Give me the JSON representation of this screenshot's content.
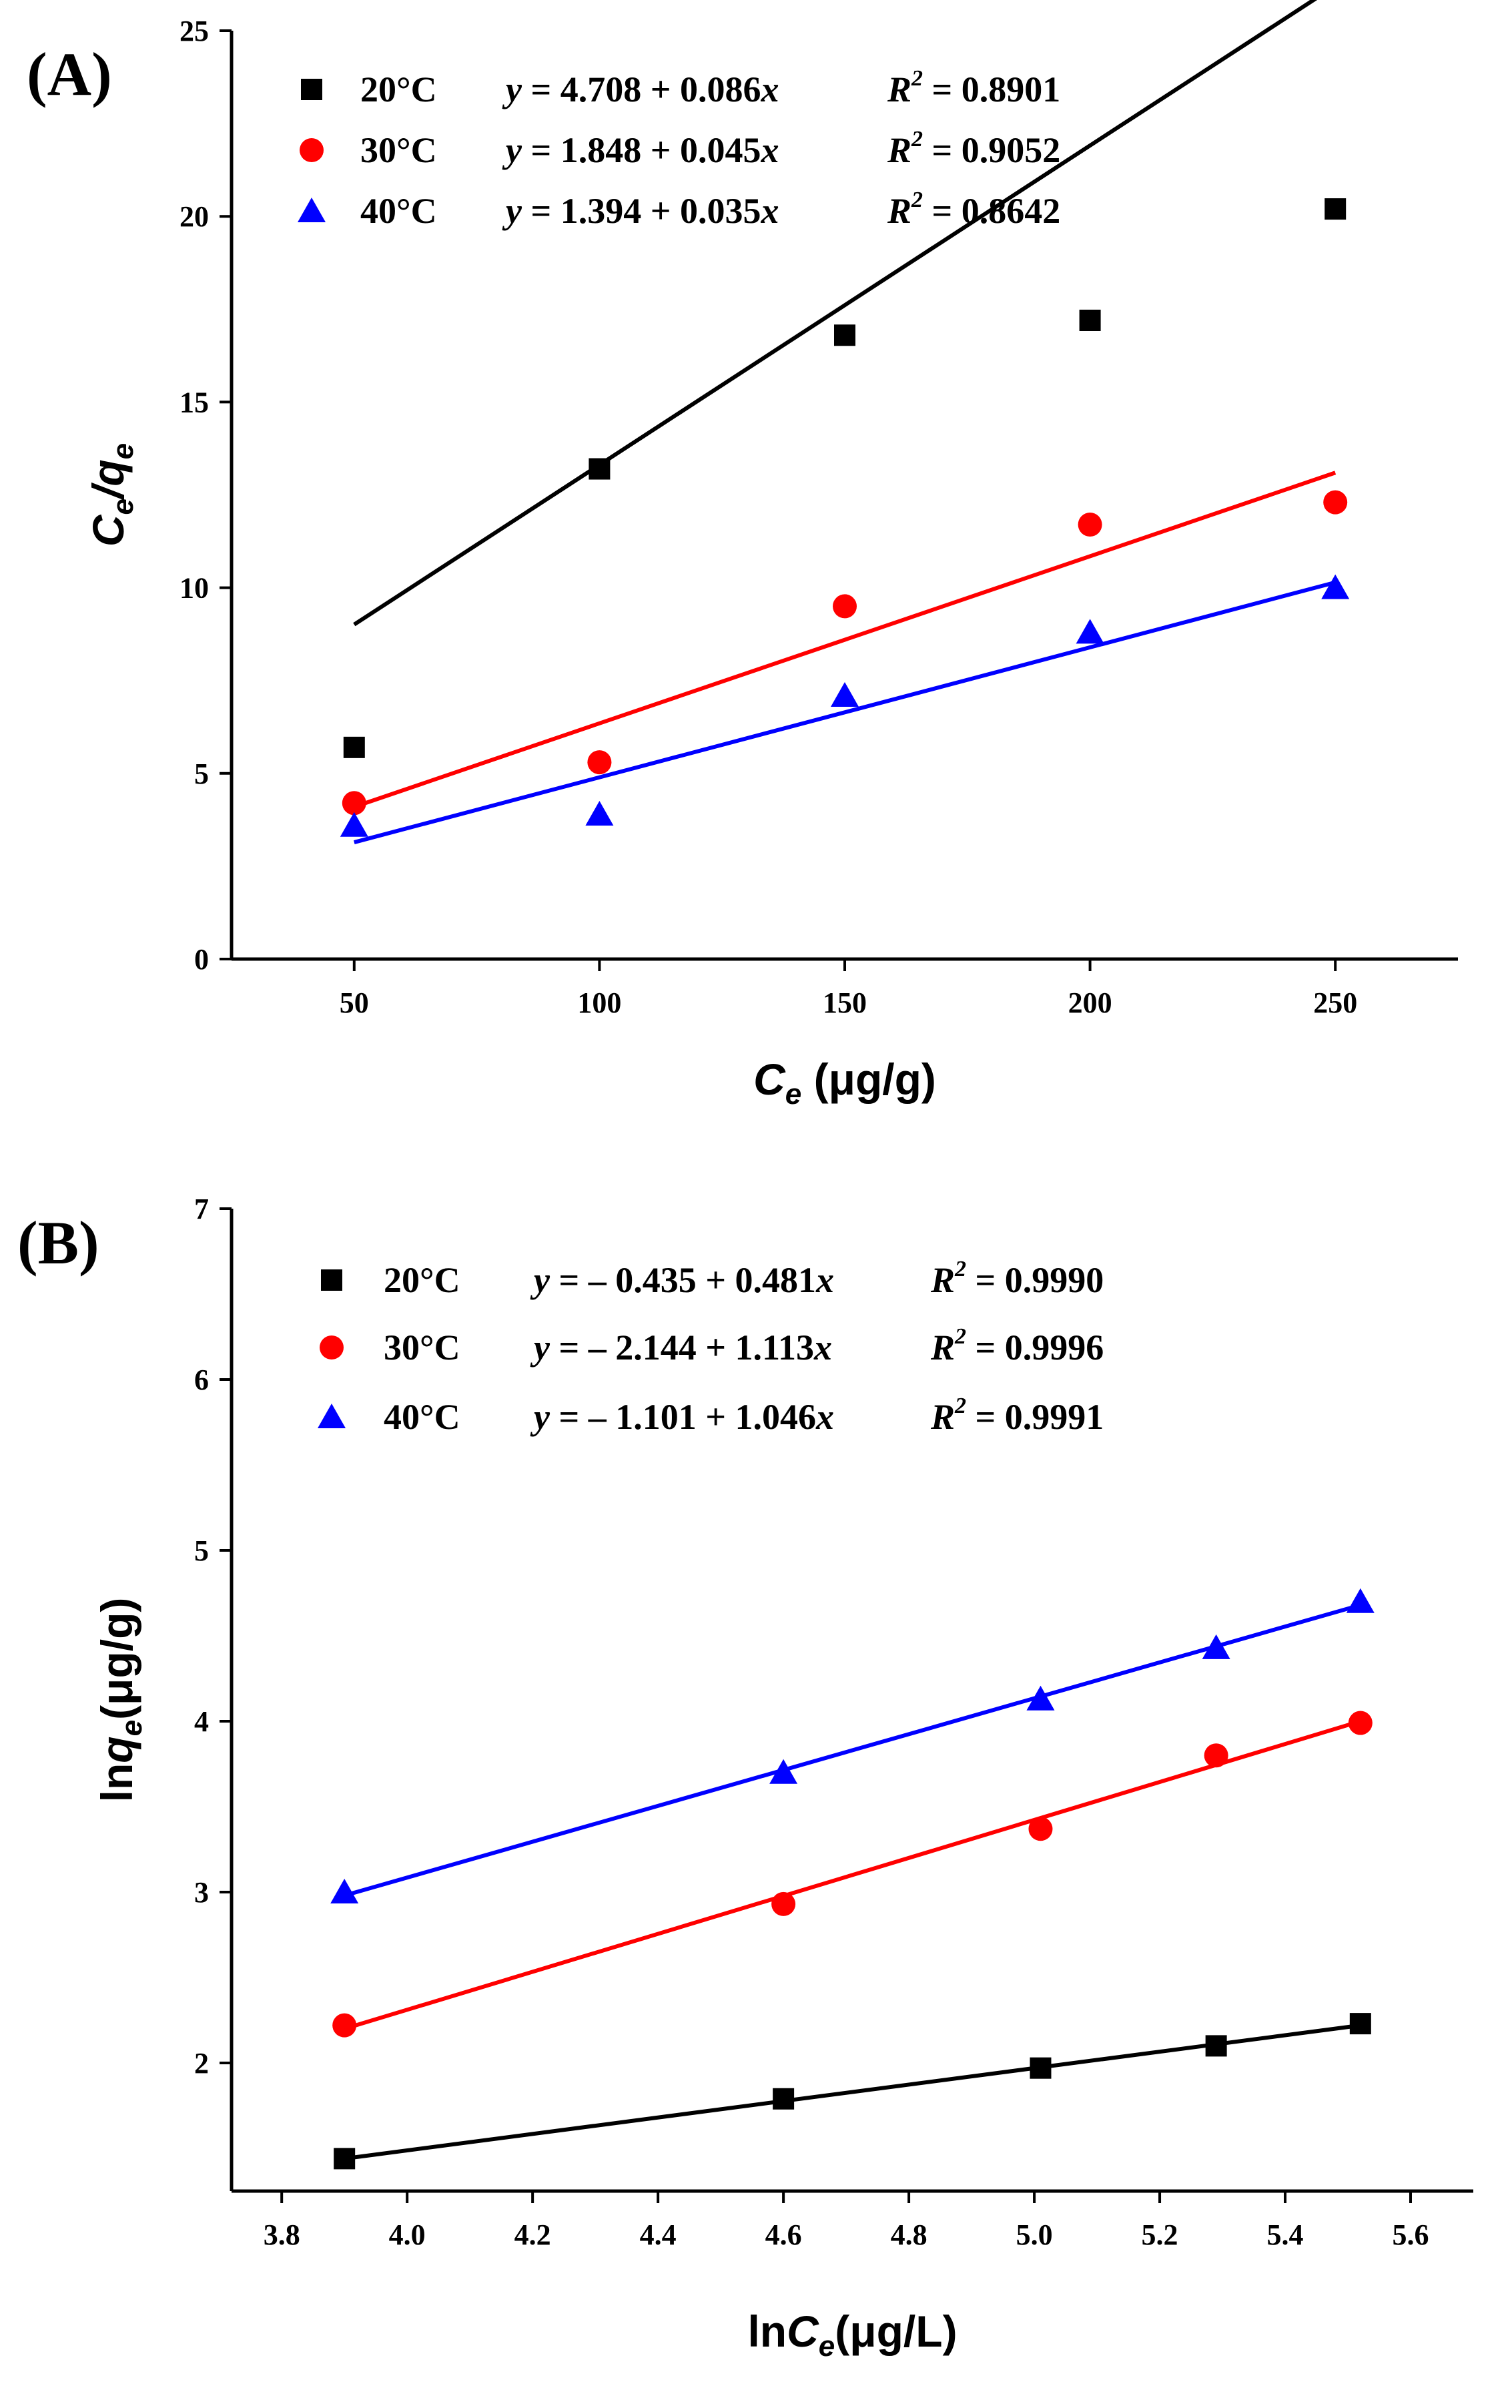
{
  "chart_data": [
    {
      "type": "scatter",
      "panel_label": "(A)",
      "title": "",
      "xlabel_main": "C",
      "xlabel_sub": "e",
      "xlabel_unit": " (μg/g)",
      "ylabel_a": "C",
      "ylabel_a_sub": "e",
      "ylabel_b": "/q",
      "ylabel_b_sub": "e",
      "xlim": [
        25,
        275
      ],
      "ylim": [
        0,
        25
      ],
      "xticks": [
        50,
        100,
        150,
        200,
        250
      ],
      "xtick_labels": [
        "50",
        "100",
        "150",
        "200",
        "250"
      ],
      "yticks": [
        0,
        5,
        10,
        15,
        20,
        25
      ],
      "ytick_labels": [
        "0",
        "5",
        "10",
        "15",
        "20",
        "25"
      ],
      "legend_position": "top-left",
      "series": [
        {
          "name": "20°C",
          "color": "#000000",
          "marker": "square",
          "x": [
            50,
            100,
            150,
            200,
            250
          ],
          "y": [
            5.7,
            13.2,
            16.8,
            17.2,
            20.2
          ],
          "fit": {
            "intercept": 4.708,
            "slope": 0.086,
            "x_range": [
              50,
              250
            ]
          },
          "equation": "y = 4.708 + 0.086x",
          "r2": "R² = 0.8901"
        },
        {
          "name": "30°C",
          "color": "#ff0000",
          "marker": "circle",
          "x": [
            50,
            100,
            150,
            200,
            250
          ],
          "y": [
            4.2,
            5.3,
            9.5,
            11.7,
            12.3
          ],
          "fit": {
            "intercept": 1.848,
            "slope": 0.045,
            "x_range": [
              50,
              250
            ]
          },
          "equation": "y = 1.848 + 0.045x",
          "r2": "R² = 0.9052"
        },
        {
          "name": "40°C",
          "color": "#0000ff",
          "marker": "triangle",
          "x": [
            50,
            100,
            150,
            200,
            250
          ],
          "y": [
            3.6,
            3.9,
            7.1,
            8.8,
            10.0
          ],
          "fit": {
            "intercept": 1.394,
            "slope": 0.035,
            "x_range": [
              50,
              250
            ]
          },
          "equation": "y = 1.394 + 0.035x",
          "r2": "R² = 0.8642"
        }
      ]
    },
    {
      "type": "scatter",
      "panel_label": "(B)",
      "title": "",
      "xlabel_main": "lnC",
      "xlabel_sub": "e",
      "xlabel_unit": "(μg/L)",
      "ylabel_a": "lnq",
      "ylabel_a_sub": "e",
      "ylabel_b": "(μg/g)",
      "ylabel_b_sub": "",
      "xlim": [
        3.72,
        5.7
      ],
      "ylim": [
        1.25,
        7
      ],
      "xticks": [
        3.8,
        4.0,
        4.2,
        4.4,
        4.6,
        4.8,
        5.0,
        5.2,
        5.4,
        5.6
      ],
      "xtick_labels": [
        "3.8",
        "4.0",
        "4.2",
        "4.4",
        "4.6",
        "4.8",
        "5.0",
        "5.2",
        "5.4",
        "5.6"
      ],
      "yticks": [
        2,
        3,
        4,
        5,
        6,
        7
      ],
      "ytick_labels": [
        "2",
        "3",
        "4",
        "5",
        "6",
        "7"
      ],
      "legend_position": "top-left",
      "series": [
        {
          "name": "20°C",
          "color": "#000000",
          "marker": "square",
          "x": [
            3.9,
            4.6,
            5.01,
            5.29,
            5.52
          ],
          "y": [
            1.44,
            1.79,
            1.97,
            2.1,
            2.23
          ],
          "fit": {
            "intercept": -0.435,
            "slope": 0.481,
            "x_range": [
              3.9,
              5.52
            ],
            "y_range": [
              1.44,
              2.22
            ]
          },
          "equation": "y = – 0.435 + 0.481x",
          "r2": "R² = 0.9990"
        },
        {
          "name": "30°C",
          "color": "#ff0000",
          "marker": "circle",
          "x": [
            3.9,
            4.6,
            5.01,
            5.29,
            5.52
          ],
          "y": [
            2.22,
            2.93,
            3.37,
            3.8,
            3.99
          ],
          "fit": {
            "intercept": -2.144,
            "slope": 1.113,
            "x_range": [
              3.9,
              5.52
            ],
            "y_range": [
              2.2,
              4.0
            ]
          },
          "equation": "y = – 2.144 + 1.113x",
          "r2": "R² = 0.9996"
        },
        {
          "name": "40°C",
          "color": "#0000ff",
          "marker": "triangle",
          "x": [
            3.9,
            4.6,
            5.01,
            5.29,
            5.52
          ],
          "y": [
            3.0,
            3.7,
            4.13,
            4.43,
            4.7
          ],
          "fit": {
            "intercept": -1.101,
            "slope": 1.046,
            "x_range": [
              3.9,
              5.52
            ],
            "y_range": [
              2.98,
              4.68
            ]
          },
          "equation": "y = – 1.101 + 1.046x",
          "r2": "R² = 0.9991"
        }
      ]
    }
  ]
}
